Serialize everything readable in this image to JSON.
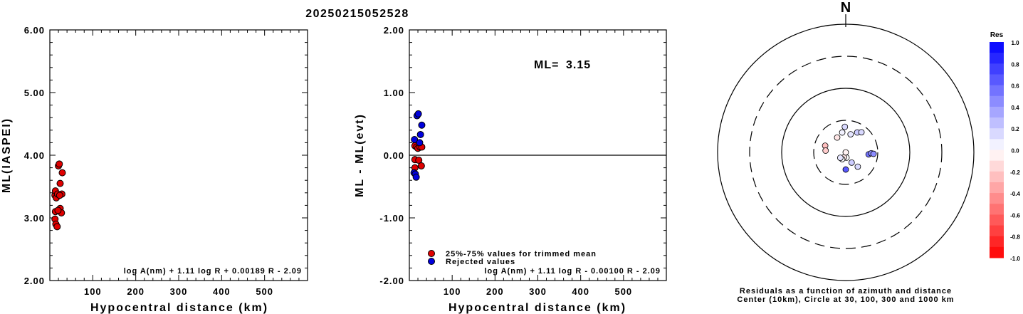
{
  "figure_title": "20250215052528",
  "colors": {
    "used": "#e00000",
    "rejected": "#0000dd",
    "axis": "#000000"
  },
  "chart_data": [
    {
      "type": "scatter",
      "xlabel": "Hypocentral distance (km)",
      "ylabel": "ML(IASPEI)",
      "xlim": [
        0,
        600
      ],
      "ylim": [
        2.0,
        6.0
      ],
      "x_ticks": [
        "100",
        "200",
        "300",
        "400",
        "500"
      ],
      "y_ticks": [
        "2.00",
        "3.00",
        "4.00",
        "5.00",
        "6.00"
      ],
      "formula": "log A(nm) + 1.11 log R + 0.00189 R - 2.09",
      "points": [
        {
          "x": 12,
          "y": 3.36
        },
        {
          "x": 13,
          "y": 3.1
        },
        {
          "x": 12,
          "y": 2.98
        },
        {
          "x": 14,
          "y": 2.9
        },
        {
          "x": 17,
          "y": 2.86
        },
        {
          "x": 13,
          "y": 3.43
        },
        {
          "x": 15,
          "y": 3.32
        },
        {
          "x": 18,
          "y": 3.38
        },
        {
          "x": 20,
          "y": 3.83
        },
        {
          "x": 22,
          "y": 3.86
        },
        {
          "x": 24,
          "y": 3.55
        },
        {
          "x": 24,
          "y": 3.15
        },
        {
          "x": 27,
          "y": 3.08
        },
        {
          "x": 29,
          "y": 3.72
        },
        {
          "x": 28,
          "y": 3.38
        },
        {
          "x": 19,
          "y": 3.12
        },
        {
          "x": 23,
          "y": 3.36
        }
      ]
    },
    {
      "type": "scatter",
      "xlabel": "Hypocentral distance (km)",
      "ylabel": "ML - ML(evt)",
      "xlim": [
        0,
        600
      ],
      "ylim": [
        -2.0,
        2.0
      ],
      "x_ticks": [
        "100",
        "200",
        "300",
        "400",
        "500"
      ],
      "y_ticks": [
        "-2.00",
        "-1.00",
        "0.00",
        "1.00",
        "2.00"
      ],
      "ml_label": "ML=",
      "ml_value": "3.15",
      "formula": "log A(nm) + 1.11 log R - 0.00100 R - 2.09",
      "legend": [
        {
          "label": "25%-75% values for trimmed mean",
          "color": "#e00000"
        },
        {
          "label": "Rejected values",
          "color": "#0000dd"
        }
      ],
      "series": [
        {
          "name": "25%-75% values for trimmed mean",
          "points": [
            {
              "x": 13,
              "y": 0.15
            },
            {
              "x": 13,
              "y": -0.07
            },
            {
              "x": 13,
              "y": -0.2
            },
            {
              "x": 17,
              "y": 0.13
            },
            {
              "x": 20,
              "y": 0.11
            },
            {
              "x": 22,
              "y": -0.08
            },
            {
              "x": 25,
              "y": 0.13
            },
            {
              "x": 28,
              "y": -0.17
            },
            {
              "x": 29,
              "y": 0.13
            }
          ]
        },
        {
          "name": "Rejected values",
          "points": [
            {
              "x": 11,
              "y": -0.28
            },
            {
              "x": 14,
              "y": -0.3
            },
            {
              "x": 16,
              "y": -0.35
            },
            {
              "x": 12,
              "y": 0.25
            },
            {
              "x": 18,
              "y": 0.63
            },
            {
              "x": 21,
              "y": 0.66
            },
            {
              "x": 24,
              "y": 0.2
            },
            {
              "x": 26,
              "y": 0.33
            },
            {
              "x": 29,
              "y": 0.48
            }
          ]
        }
      ]
    },
    {
      "type": "scatter",
      "subtype": "polar",
      "north_label": "N",
      "caption_line1": "Residuals as a function of azimuth and distance",
      "caption_line2": "Center (10km), Circle at 30, 100, 300 and 1000 km",
      "colorbar_title": "Res",
      "colorbar_ticks": [
        "1.0",
        "0.8",
        "0.6",
        "0.4",
        "0.2",
        "0.0",
        "-0.2",
        "-0.4",
        "-0.6",
        "-0.8",
        "-1.0"
      ],
      "rings_km": [
        30,
        100,
        300,
        1000
      ],
      "ring_styles": [
        "dashed",
        "solid",
        "dashed",
        "solid"
      ],
      "points": [
        {
          "az": 358,
          "dist": 24,
          "res": 0.15
        },
        {
          "az": 15,
          "dist": 19,
          "res": 0.1
        },
        {
          "az": 30,
          "dist": 22,
          "res": 0.2
        },
        {
          "az": 38,
          "dist": 24,
          "res": 0.15
        },
        {
          "az": 350,
          "dist": 20,
          "res": 0.05
        },
        {
          "az": 330,
          "dist": 18,
          "res": -0.1
        },
        {
          "az": 288,
          "dist": 21,
          "res": -0.25
        },
        {
          "az": 275,
          "dist": 20,
          "res": -0.2
        },
        {
          "az": 140,
          "dist": 19,
          "res": 0.15
        },
        {
          "az": 172,
          "dist": 12,
          "res": 0.0
        },
        {
          "az": 200,
          "dist": 12,
          "res": -0.1
        },
        {
          "az": 208,
          "dist": 13,
          "res": 0.0
        },
        {
          "az": 150,
          "dist": 15,
          "res": 0.2
        },
        {
          "az": 180,
          "dist": 18,
          "res": 0.65
        },
        {
          "az": 95,
          "dist": 22,
          "res": 0.55
        },
        {
          "az": 92,
          "dist": 24,
          "res": 0.45
        },
        {
          "az": 93,
          "dist": 26,
          "res": 0.45
        },
        {
          "az": 225,
          "dist": 13,
          "res": 0.1
        },
        {
          "az": 120,
          "dist": 10,
          "res": -0.05
        }
      ]
    }
  ]
}
